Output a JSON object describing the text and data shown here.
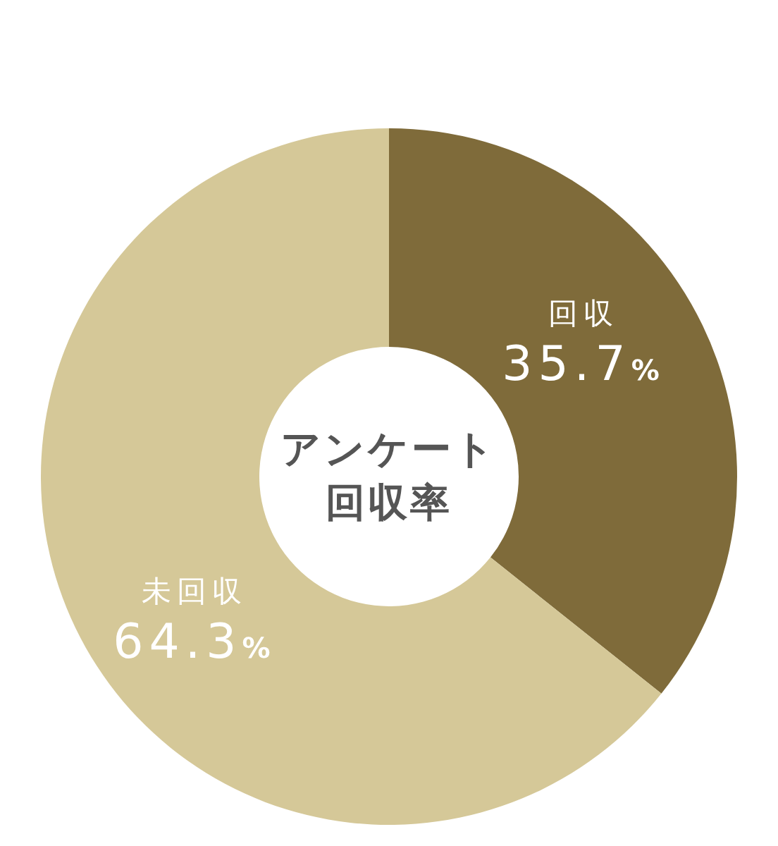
{
  "chart_data": {
    "type": "donut",
    "title": "アンケート回収率",
    "categories": [
      "回収",
      "未回収"
    ],
    "values": [
      35.7,
      64.3
    ],
    "colors": [
      "#7f6b3a",
      "#d5c898"
    ],
    "value_labels": [
      "35.7%",
      "64.3%"
    ]
  }
}
